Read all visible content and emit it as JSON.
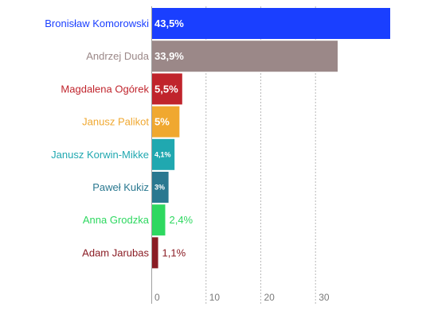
{
  "chart_data": {
    "type": "bar",
    "orientation": "horizontal",
    "title": "",
    "xlabel": "",
    "ylabel": "",
    "xlim": [
      0,
      43.5
    ],
    "grid": true,
    "categories": [
      "Bronisław Komorowski",
      "Andrzej Duda",
      "Magdalena Ogórek",
      "Janusz Palikot",
      "Janusz Korwin-Mikke",
      "Paweł Kukiz",
      "Anna Grodzka",
      "Adam Jarubas"
    ],
    "values": [
      43.5,
      33.9,
      5.5,
      5,
      4.1,
      3,
      2.4,
      1.1
    ],
    "value_labels": [
      "43,5%",
      "33,9%",
      "5,5%",
      "5%",
      "4,1%",
      "3%",
      "2,4%",
      "1,1%"
    ],
    "colors": [
      "#1a3fff",
      "#9b8888",
      "#c0242c",
      "#f0a830",
      "#20a8b0",
      "#2a7890",
      "#2ed860",
      "#8a1c24"
    ],
    "x_ticks": [
      0,
      10,
      20,
      30
    ],
    "x_tick_labels": [
      "0",
      "10",
      "20",
      "30"
    ]
  }
}
